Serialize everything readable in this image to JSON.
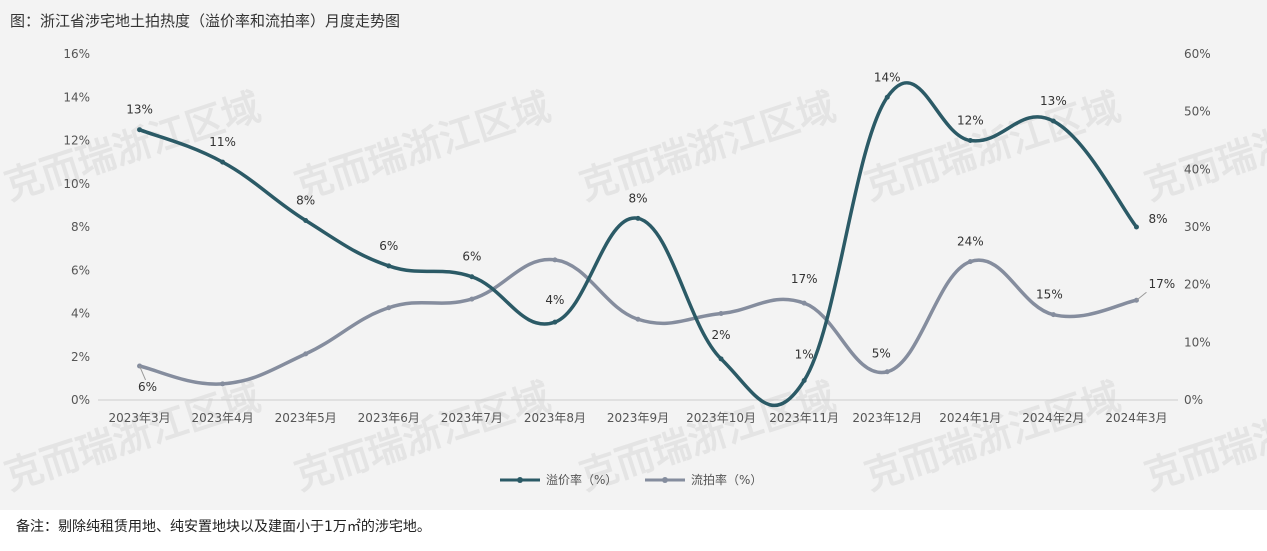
{
  "title": "图：浙江省涉宅地土拍热度（溢价率和流拍率）月度走势图",
  "footnote": "备注：剔除纯租赁用地、纯安置地块以及建面小于1万㎡的涉宅地。",
  "watermark": "克而瑞浙江区域",
  "chart_data": {
    "type": "line",
    "categories": [
      "2023年3月",
      "2023年4月",
      "2023年5月",
      "2023年6月",
      "2023年7月",
      "2023年8月",
      "2023年9月",
      "2023年10月",
      "2023年11月",
      "2023年12月",
      "2024年1月",
      "2024年2月",
      "2024年3月"
    ],
    "y_left": {
      "ylim": [
        0,
        16
      ],
      "ticks": [
        "0%",
        "2%",
        "4%",
        "6%",
        "8%",
        "10%",
        "12%",
        "14%",
        "16%"
      ]
    },
    "y_right": {
      "ylim": [
        0,
        60
      ],
      "ticks": [
        "0%",
        "10%",
        "20%",
        "30%",
        "40%",
        "50%",
        "60%"
      ]
    },
    "legend_position": "bottom",
    "series": [
      {
        "name": "溢价率（%）",
        "axis": "left",
        "color": "#2b5a66",
        "values": [
          12.5,
          11.0,
          8.3,
          6.2,
          5.7,
          3.6,
          8.4,
          1.9,
          0.9,
          14.0,
          12.0,
          12.9,
          8.0
        ],
        "labels": [
          "13%",
          "11%",
          "8%",
          "6%",
          "6%",
          "4%",
          "8%",
          "2%",
          "1%",
          "14%",
          "12%",
          "13%",
          "8%"
        ]
      },
      {
        "name": "流拍率（%）",
        "axis": "right",
        "color": "#858d9e",
        "values": [
          5.9,
          2.8,
          8.0,
          16.0,
          17.5,
          24.3,
          14.0,
          15.0,
          16.8,
          4.9,
          24.0,
          14.8,
          17.3
        ],
        "labels": [
          "6%",
          "",
          "",
          "",
          "",
          "",
          "",
          "",
          "17%",
          "5%",
          "24%",
          "15%",
          "17%"
        ]
      }
    ]
  }
}
